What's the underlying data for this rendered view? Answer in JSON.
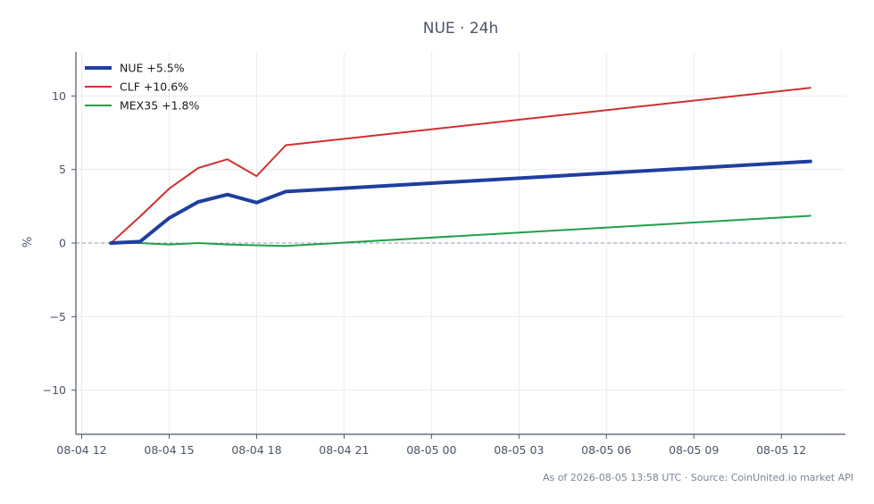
{
  "chart_data": {
    "type": "line",
    "title": "NUE · 24h",
    "xlabel": "",
    "ylabel": "%",
    "x_ticks": [
      "08-04 12",
      "08-04 15",
      "08-04 18",
      "08-04 21",
      "08-05 00",
      "08-05 03",
      "08-05 06",
      "08-05 09",
      "08-05 12"
    ],
    "x_hours": [
      13,
      14,
      15,
      16,
      17,
      18,
      19,
      37
    ],
    "x_range_hours": [
      11.8,
      38.2
    ],
    "y_ticks": [
      10,
      5,
      0,
      -5,
      -10
    ],
    "y_tick_labels": [
      "10",
      "5",
      "0",
      "−5",
      "−10"
    ],
    "ylim": [
      -13,
      13
    ],
    "grid": true,
    "zero_line": true,
    "legend_position": "top-left",
    "series": [
      {
        "name": "NUE +5.5%",
        "color": "#1f3f9f",
        "width": 4,
        "values": [
          0.0,
          0.1,
          1.7,
          2.8,
          3.3,
          2.75,
          3.5,
          5.55
        ]
      },
      {
        "name": "CLF +10.6%",
        "color": "#d03030",
        "width": 2,
        "values": [
          0.0,
          1.8,
          3.7,
          5.1,
          5.7,
          4.55,
          6.65,
          10.55
        ]
      },
      {
        "name": "MEX35 +1.8%",
        "color": "#22a04a",
        "width": 2,
        "values": [
          0.0,
          0.0,
          -0.1,
          0.0,
          -0.1,
          -0.15,
          -0.2,
          1.85
        ]
      }
    ],
    "footer": "As of 2026-08-05 13:58 UTC · Source: CoinUnited.io market API"
  }
}
